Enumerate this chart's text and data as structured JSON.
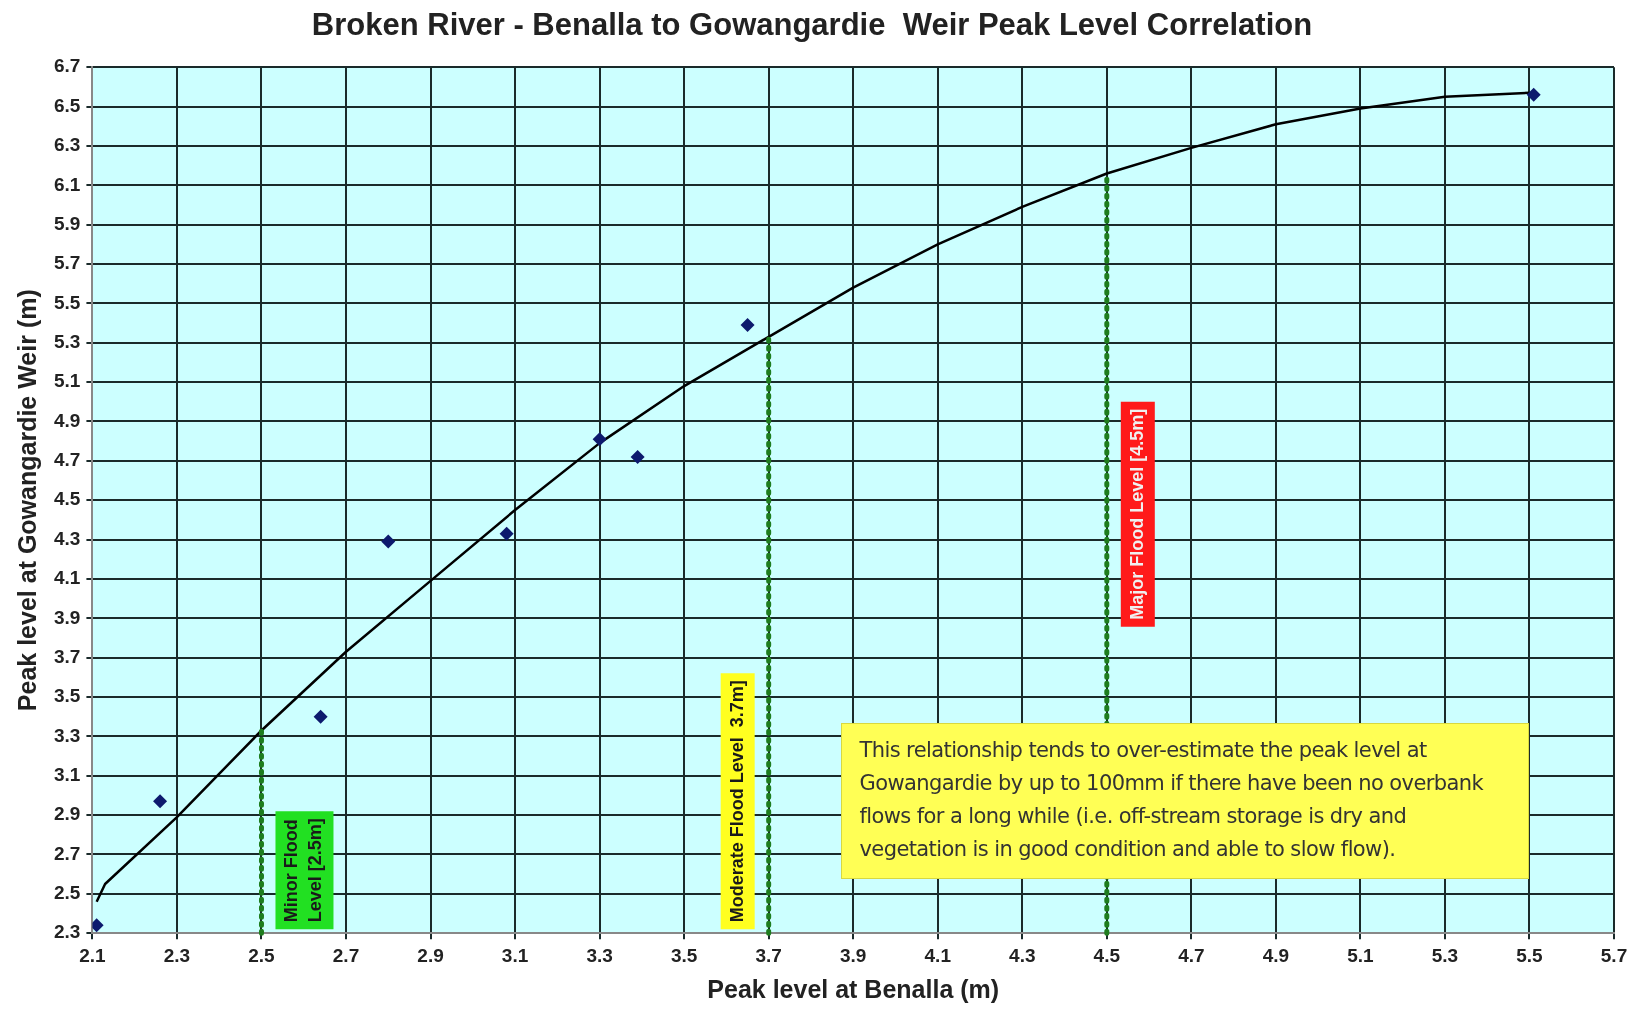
{
  "chart_data": {
    "type": "scatter",
    "title": "Broken River - Benalla to Gowangardie  Weir Peak Level Correlation",
    "xlabel": "Peak level at Benalla (m)",
    "ylabel": "Peak level at Gowangardie Weir (m)",
    "xlim": [
      2.1,
      5.7
    ],
    "xticks": [
      2.1,
      2.3,
      2.5,
      2.7,
      2.9,
      3.1,
      3.3,
      3.5,
      3.7,
      3.9,
      4.1,
      4.3,
      4.5,
      4.7,
      4.9,
      5.1,
      5.3,
      5.5,
      5.7
    ],
    "ylim": [
      2.3,
      6.7
    ],
    "yticks": [
      2.3,
      2.5,
      2.7,
      2.9,
      3.1,
      3.3,
      3.5,
      3.7,
      3.9,
      4.1,
      4.3,
      4.5,
      4.7,
      4.9,
      5.1,
      5.3,
      5.5,
      5.7,
      5.9,
      6.1,
      6.3,
      6.5,
      6.7
    ],
    "grid": true,
    "marker": "diamond",
    "legend": false,
    "series": [
      {
        "color": "#0d1a6e",
        "x": [
          2.11,
          2.26,
          2.64,
          2.8,
          3.08,
          3.3,
          3.39,
          3.65,
          5.51
        ],
        "values": [
          2.34,
          2.97,
          3.4,
          4.29,
          4.33,
          4.81,
          4.72,
          5.39,
          6.56
        ]
      },
      {
        "type": "line",
        "color": "#000000",
        "marker": "none",
        "line_style": "solid",
        "x": [
          2.11,
          2.13,
          2.3,
          2.5,
          2.7,
          2.9,
          3.1,
          3.3,
          3.5,
          3.7,
          3.9,
          4.1,
          4.3,
          4.5,
          4.7,
          4.9,
          5.1,
          5.3,
          5.5
        ],
        "values": [
          2.46,
          2.55,
          2.89,
          3.33,
          3.73,
          4.09,
          4.45,
          4.79,
          5.08,
          5.33,
          5.58,
          5.8,
          5.99,
          6.16,
          6.29,
          6.41,
          6.49,
          6.55,
          6.57
        ]
      }
    ],
    "ref_lines": [
      {
        "axis": "x",
        "value": 2.5,
        "label": "Minor Flood\nLevel [2.5m]",
        "color": "#1e7d1e",
        "line_style": "dotted"
      },
      {
        "axis": "x",
        "value": 3.7,
        "label": "Moderate Flood Level  3.7m]",
        "color": "#1e7d1e",
        "line_style": "dotted"
      },
      {
        "axis": "x",
        "value": 4.5,
        "label": "Major Flood Level [4.5m]",
        "color": "#1e7d1e",
        "line_style": "dotted"
      }
    ],
    "annotations": [
      "This relationship tends to over-estimate the peak level at Gowangardie by up to 100mm  if there have been no overbank flows for a long while (i.e. off-stream storage is dry and vegetation is in good condition and able to slow flow)."
    ]
  }
}
